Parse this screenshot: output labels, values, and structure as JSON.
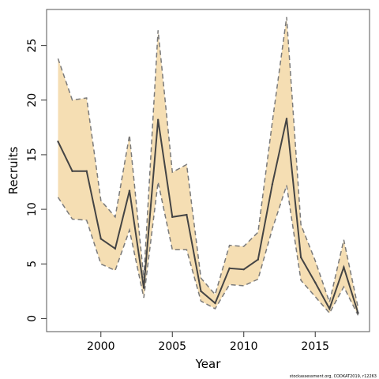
{
  "chart_data": {
    "type": "line",
    "xlabel": "Year",
    "ylabel": "Recruits",
    "xlim": [
      1996.2,
      2018.8
    ],
    "ylim": [
      -1.2,
      28.3
    ],
    "x_ticks": [
      2000,
      2005,
      2010,
      2015
    ],
    "y_ticks": [
      0,
      5,
      10,
      15,
      20,
      25
    ],
    "grid": false,
    "band_color": "#f5deb3",
    "line_color": "#444444",
    "bound_color": "#7a7a7a",
    "x": [
      1997,
      1998,
      1999,
      2000,
      2001,
      2002,
      2003,
      2004,
      2005,
      2006,
      2007,
      2008,
      2009,
      2010,
      2011,
      2012,
      2013,
      2014,
      2015,
      2016,
      2017,
      2018
    ],
    "series": [
      {
        "values": [
          16.2,
          13.5,
          13.5,
          7.3,
          6.4,
          11.7,
          2.8,
          18.2,
          9.3,
          9.5,
          2.5,
          1.4,
          4.6,
          4.5,
          5.4,
          12.3,
          18.3,
          5.6,
          3.3,
          0.9,
          4.7,
          0.5
        ]
      },
      {
        "values": [
          23.8,
          20.0,
          20.2,
          10.8,
          9.3,
          16.8,
          3.7,
          26.4,
          13.4,
          14.1,
          3.7,
          2.2,
          6.7,
          6.6,
          7.9,
          18.0,
          27.6,
          8.6,
          5.3,
          1.5,
          7.2,
          1.0
        ]
      },
      {
        "values": [
          11.1,
          9.1,
          9.0,
          5.0,
          4.4,
          8.1,
          1.9,
          12.5,
          6.3,
          6.3,
          1.6,
          0.9,
          3.1,
          3.0,
          3.6,
          8.2,
          12.2,
          3.5,
          2.0,
          0.5,
          2.9,
          0.3
        ]
      }
    ]
  },
  "credit": "stockassessment.org, CODKAT2019, r12263"
}
